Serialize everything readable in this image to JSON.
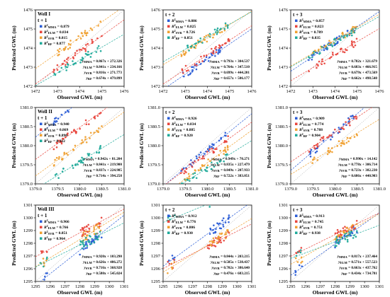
{
  "figure": {
    "ylabel": "Predicted GWL (m)",
    "xlabel": "Observed GWL (m)",
    "series_colors": {
      "MMA": "#2a5cd6",
      "ELM": "#e8453c",
      "SVR": "#f0a030",
      "RF": "#1faa9a"
    }
  },
  "chart_data": [
    {
      "type": "scatter",
      "well": "Well I",
      "lead": "t + 1",
      "xlabel": "Observed GWL (m)",
      "ylabel": "Predicted GWL (m)",
      "xlim": [
        1472,
        1476
      ],
      "ylim": [
        1472,
        1476
      ],
      "xticks": [
        "1472",
        "1473",
        "1474",
        "1475",
        "1476"
      ],
      "yticks": [
        "1472",
        "1473",
        "1474",
        "1475",
        "1476"
      ],
      "series": [
        {
          "key": "MMA",
          "r2_label": "R²MMA = 0.879",
          "fit_label": "yMMA = 0.867x + 272.326",
          "slope": 0.867,
          "intercept": 272.326
        },
        {
          "key": "ELM",
          "r2_label": "R²ELM = 0.834",
          "fit_label": "yELM = 0.841x + 234.166",
          "slope": 0.841,
          "intercept": 234.166
        },
        {
          "key": "SVR",
          "r2_label": "R²SVR = 0.815",
          "fit_label": "ySVR = 0.816x + 271.773",
          "slope": 0.816,
          "intercept": 271.773
        },
        {
          "key": "RF",
          "r2_label": "R²RF = 0.877",
          "fit_label": "yRF = 0.674x + 479.899",
          "slope": 0.674,
          "intercept": 479.899
        }
      ]
    },
    {
      "type": "scatter",
      "well": "",
      "lead": "t + 2",
      "xlabel": "Observed GWL (m)",
      "ylabel": "Predicted GWL (m)",
      "xlim": [
        1472,
        1476
      ],
      "ylim": [
        1472,
        1476
      ],
      "xticks": [
        "1472",
        "1473",
        "1474",
        "1475",
        "1476"
      ],
      "yticks": [
        "1472",
        "1473",
        "1474",
        "1475",
        "1476"
      ],
      "series": [
        {
          "key": "MMA",
          "r2_label": "R²MMA = 0.886",
          "fit_label": "yMMA = 0.793x + 304.537",
          "slope": 0.793,
          "intercept": 304.537
        },
        {
          "key": "ELM",
          "r2_label": "R²ELM = 0.825",
          "fit_label": "yELM = 0.764x + 347.510",
          "slope": 0.764,
          "intercept": 347.51
        },
        {
          "key": "SVR",
          "r2_label": "R²SVR = 0.726",
          "fit_label": "ySVR = 0.699x + 444.201",
          "slope": 0.699,
          "intercept": 444.201
        },
        {
          "key": "RF",
          "r2_label": "R²RF = 0.851",
          "fit_label": "yRF = 0.657x + 506.177",
          "slope": 0.657,
          "intercept": 506.177
        }
      ]
    },
    {
      "type": "scatter",
      "well": "",
      "lead": "t + 3",
      "xlabel": "Observed GWL (m)",
      "ylabel": "Predicted GWL (m)",
      "xlim": [
        1472,
        1476
      ],
      "ylim": [
        1472,
        1476
      ],
      "xticks": [
        "1472",
        "1473",
        "1474",
        "1475",
        "1476"
      ],
      "yticks": [
        "1472",
        "1473",
        "1474",
        "1475",
        "1476"
      ],
      "series": [
        {
          "key": "MMA",
          "r2_label": "R²MMA = 0.857",
          "fit_label": "yMMA = 0.782x + 321.679",
          "slope": 0.782,
          "intercept": 321.679
        },
        {
          "key": "ELM",
          "r2_label": "R²ELM = 0.823",
          "fit_label": "yELM = 0.683x + 466.915",
          "slope": 0.683,
          "intercept": 466.915
        },
        {
          "key": "SVR",
          "r2_label": "R²SVR = 0.789",
          "fit_label": "ySVR = 0.679x + 473.569",
          "slope": 0.679,
          "intercept": 473.569
        },
        {
          "key": "RF",
          "r2_label": "R²RF = 0.835",
          "fit_label": "yRF = 0.662x + 498.548",
          "slope": 0.662,
          "intercept": 498.548
        }
      ]
    },
    {
      "type": "scatter",
      "well": "Well II",
      "lead": "t + 1",
      "xlabel": "Observed GWL (m)",
      "ylabel": "Predicted GWL (m)",
      "xlim": [
        1379,
        1381
      ],
      "ylim": [
        1379,
        1381
      ],
      "xticks": [
        "1379.0",
        "1379.5",
        "1380.0",
        "1380.5",
        "1381.0"
      ],
      "yticks": [
        "1379.0",
        "1379.5",
        "1380.0",
        "1380.5",
        "1381.0"
      ],
      "series": [
        {
          "key": "MMA",
          "r2_label": "R²MMA = 0.940",
          "fit_label": "yMMA = 0.942x + 81.204",
          "slope": 0.942,
          "intercept": 81.204
        },
        {
          "key": "ELM",
          "r2_label": "R²ELM = 0.869",
          "fit_label": "yELM = 0.841x + 219.900",
          "slope": 0.841,
          "intercept": 219.9
        },
        {
          "key": "SVR",
          "r2_label": "R²SVR = 0.896",
          "fit_label": "ySVR = 0.837x + 224.985",
          "slope": 0.837,
          "intercept": 224.985
        },
        {
          "key": "RF",
          "r2_label": "R²RF = 0.922",
          "fit_label": "yRF = 0.714x + 394.258",
          "slope": 0.714,
          "intercept": 394.258
        }
      ]
    },
    {
      "type": "scatter",
      "well": "",
      "lead": "t + 2",
      "xlabel": "Observed GWL (m)",
      "ylabel": "Predicted GWL (m)",
      "xlim": [
        1379,
        1381
      ],
      "ylim": [
        1379,
        1381
      ],
      "xticks": [
        "1379.0",
        "1379.5",
        "1380.0",
        "1380.5",
        "1381.0"
      ],
      "yticks": [
        "1379.0",
        "1379.5",
        "1380.0",
        "1380.5",
        "1381.0"
      ],
      "series": [
        {
          "key": "MMA",
          "r2_label": "R²MMA = 0.926",
          "fit_label": "yMMA = 0.949x + 70.271",
          "slope": 0.949,
          "intercept": 70.271
        },
        {
          "key": "ELM",
          "r2_label": "R²ELM = 0.834",
          "fit_label": "yELM = 0.835x + 227.479",
          "slope": 0.835,
          "intercept": 227.479
        },
        {
          "key": "SVR",
          "r2_label": "R²SVR = 0.885",
          "fit_label": "ySVR = 0.849x + 207.933",
          "slope": 0.849,
          "intercept": 207.933
        },
        {
          "key": "RF",
          "r2_label": "R²RF = 0.920",
          "fit_label": "yRF = 0.722x + 383.051",
          "slope": 0.722,
          "intercept": 383.051
        }
      ]
    },
    {
      "type": "scatter",
      "well": "",
      "lead": "t + 3",
      "xlabel": "Observed GWL (m)",
      "ylabel": "Predicted GWL (m)",
      "xlim": [
        1379,
        1381
      ],
      "ylim": [
        1379,
        1381
      ],
      "xticks": [
        "1379.0",
        "1379.5",
        "1380.0",
        "1380.5",
        "1381.0"
      ],
      "yticks": [
        "1379.0",
        "1379.5",
        "1380.0",
        "1380.5",
        "1381.0"
      ],
      "series": [
        {
          "key": "MMA",
          "r2_label": "R²MMA = 0.909",
          "fit_label": "yMMA = 0.990x + 14.142",
          "slope": 0.99,
          "intercept": 14.142
        },
        {
          "key": "ELM",
          "r2_label": "R²ELM = 0.774",
          "fit_label": "yELM = 0.778x + 306.714",
          "slope": 0.778,
          "intercept": 306.714
        },
        {
          "key": "SVR",
          "r2_label": "R²SVR = 0.788",
          "fit_label": "ySVR = 0.723x + 382.230",
          "slope": 0.723,
          "intercept": 382.23
        },
        {
          "key": "RF",
          "r2_label": "R²RF = 0.904",
          "fit_label": "yRF = 0.686x + 440.903",
          "slope": 0.686,
          "intercept": 440.903
        }
      ]
    },
    {
      "type": "scatter",
      "well": "Well III",
      "lead": "t + 1",
      "xlabel": "Observed GWL (m)",
      "ylabel": "Predicted GWL (m)",
      "xlim": [
        1295,
        1301
      ],
      "ylim": [
        1295,
        1301
      ],
      "xticks": [
        "1295",
        "1296",
        "1297",
        "1298",
        "1299",
        "1300",
        "1301"
      ],
      "yticks": [
        "1295",
        "1296",
        "1297",
        "1298",
        "1299",
        "1300",
        "1301"
      ],
      "series": [
        {
          "key": "MMA",
          "r2_label": "R²MMA = 0.966",
          "fit_label": "yMMA = 0.920x + 103.290",
          "slope": 0.92,
          "intercept": 103.29
        },
        {
          "key": "ELM",
          "r2_label": "R²ELM = 0.766",
          "fit_label": "yELM = 0.626x + 486.272",
          "slope": 0.626,
          "intercept": 486.272
        },
        {
          "key": "SVR",
          "r2_label": "R²SVR = 0.851",
          "fit_label": "ySVR = 0.716x + 368.928",
          "slope": 0.716,
          "intercept": 368.928
        },
        {
          "key": "RF",
          "r2_label": "R²RF = 0.964",
          "fit_label": "yRF = 0.580x + 545.024",
          "slope": 0.58,
          "intercept": 545.024
        }
      ]
    },
    {
      "type": "scatter",
      "well": "",
      "lead": "t + 2",
      "xlabel": "Observed GWL (m)",
      "ylabel": "Predicted GWL (m)",
      "xlim": [
        1295,
        1301
      ],
      "ylim": [
        1295,
        1301
      ],
      "xticks": [
        "1295",
        "1296",
        "1297",
        "1298",
        "1299",
        "1300",
        "1301"
      ],
      "yticks": [
        "1295",
        "1296",
        "1297",
        "1298",
        "1299",
        "1300",
        "1301"
      ],
      "series": [
        {
          "key": "MMA",
          "r2_label": "R²MMA = 0.912",
          "fit_label": "yMMA = 0.844x + 203.215",
          "slope": 0.844,
          "intercept": 203.215
        },
        {
          "key": "ELM",
          "r2_label": "R²ELM = 0.776",
          "fit_label": "yELM = 0.585x + 538.437",
          "slope": 0.585,
          "intercept": 538.437
        },
        {
          "key": "SVR",
          "r2_label": "R²SVR = 0.806",
          "fit_label": "ySVR = 0.702x + 386.640",
          "slope": 0.702,
          "intercept": 386.64
        },
        {
          "key": "RF",
          "r2_label": "R²RF = 0.930",
          "fit_label": "yRF = 0.476x + 683.215",
          "slope": 0.476,
          "intercept": 683.215
        }
      ]
    },
    {
      "type": "scatter",
      "well": "",
      "lead": "t + 3",
      "xlabel": "Observed GWL (m)",
      "ylabel": "Predicted GWL (m)",
      "xlim": [
        1295,
        1301
      ],
      "ylim": [
        1295,
        1301
      ],
      "xticks": [
        "1295",
        "1296",
        "1297",
        "1298",
        "1299",
        "1300",
        "1301"
      ],
      "yticks": [
        "1295",
        "1296",
        "1297",
        "1298",
        "1299",
        "1300",
        "1301"
      ],
      "series": [
        {
          "key": "MMA",
          "r2_label": "R²MMA = 0.913",
          "fit_label": "yMMA = 0.817x + 237.464",
          "slope": 0.817,
          "intercept": 237.464
        },
        {
          "key": "ELM",
          "r2_label": "R²ELM = 0.745",
          "fit_label": "yELM = 0.571x + 557.523",
          "slope": 0.571,
          "intercept": 557.523
        },
        {
          "key": "SVR",
          "r2_label": "R²SVR = 0.751",
          "fit_label": "ySVR = 0.663x + 437.762",
          "slope": 0.663,
          "intercept": 437.762
        },
        {
          "key": "RF",
          "r2_label": "R²RF = 0.938",
          "fit_label": "yRF = 0.434x + 734.781",
          "slope": 0.434,
          "intercept": 734.781
        }
      ]
    }
  ]
}
